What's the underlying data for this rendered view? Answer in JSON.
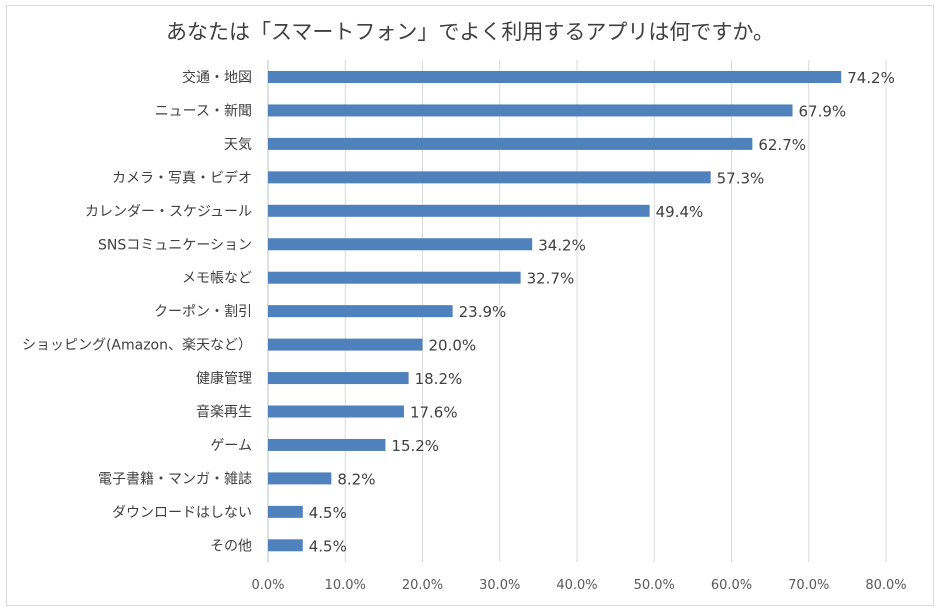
{
  "chart_data": {
    "type": "bar",
    "orientation": "horizontal",
    "title": "あなたは「スマートフォン」でよく利用するアプリは何ですか。",
    "categories": [
      "交通・地図",
      "ニュース・新聞",
      "天気",
      "カメラ・写真・ビデオ",
      "カレンダー・スケジュール",
      "SNSコミュニケーション",
      "メモ帳など",
      "クーポン・割引",
      "ショッピング(Amazon、楽天など）",
      "健康管理",
      "音楽再生",
      "ゲーム",
      "電子書籍・マンガ・雑誌",
      "ダウンロードはしない",
      "その他"
    ],
    "values": [
      74.2,
      67.9,
      62.7,
      57.3,
      49.4,
      34.2,
      32.7,
      23.9,
      20.0,
      18.2,
      17.6,
      15.2,
      8.2,
      4.5,
      4.5
    ],
    "data_labels": [
      "74.2%",
      "67.9%",
      "62.7%",
      "57.3%",
      "49.4%",
      "34.2%",
      "32.7%",
      "23.9%",
      "20.0%",
      "18.2%",
      "17.6%",
      "15.2%",
      "8.2%",
      "4.5%",
      "4.5%"
    ],
    "xlim": [
      0,
      80
    ],
    "x_ticks": [
      "0.0%",
      "10.0%",
      "20.0%",
      "30.0%",
      "40.0%",
      "50.0%",
      "60.0%",
      "70.0%",
      "80.0%"
    ],
    "grid": "vertical",
    "legend": "none",
    "bar_color": "#4f81bd",
    "xlabel": "",
    "ylabel": ""
  }
}
